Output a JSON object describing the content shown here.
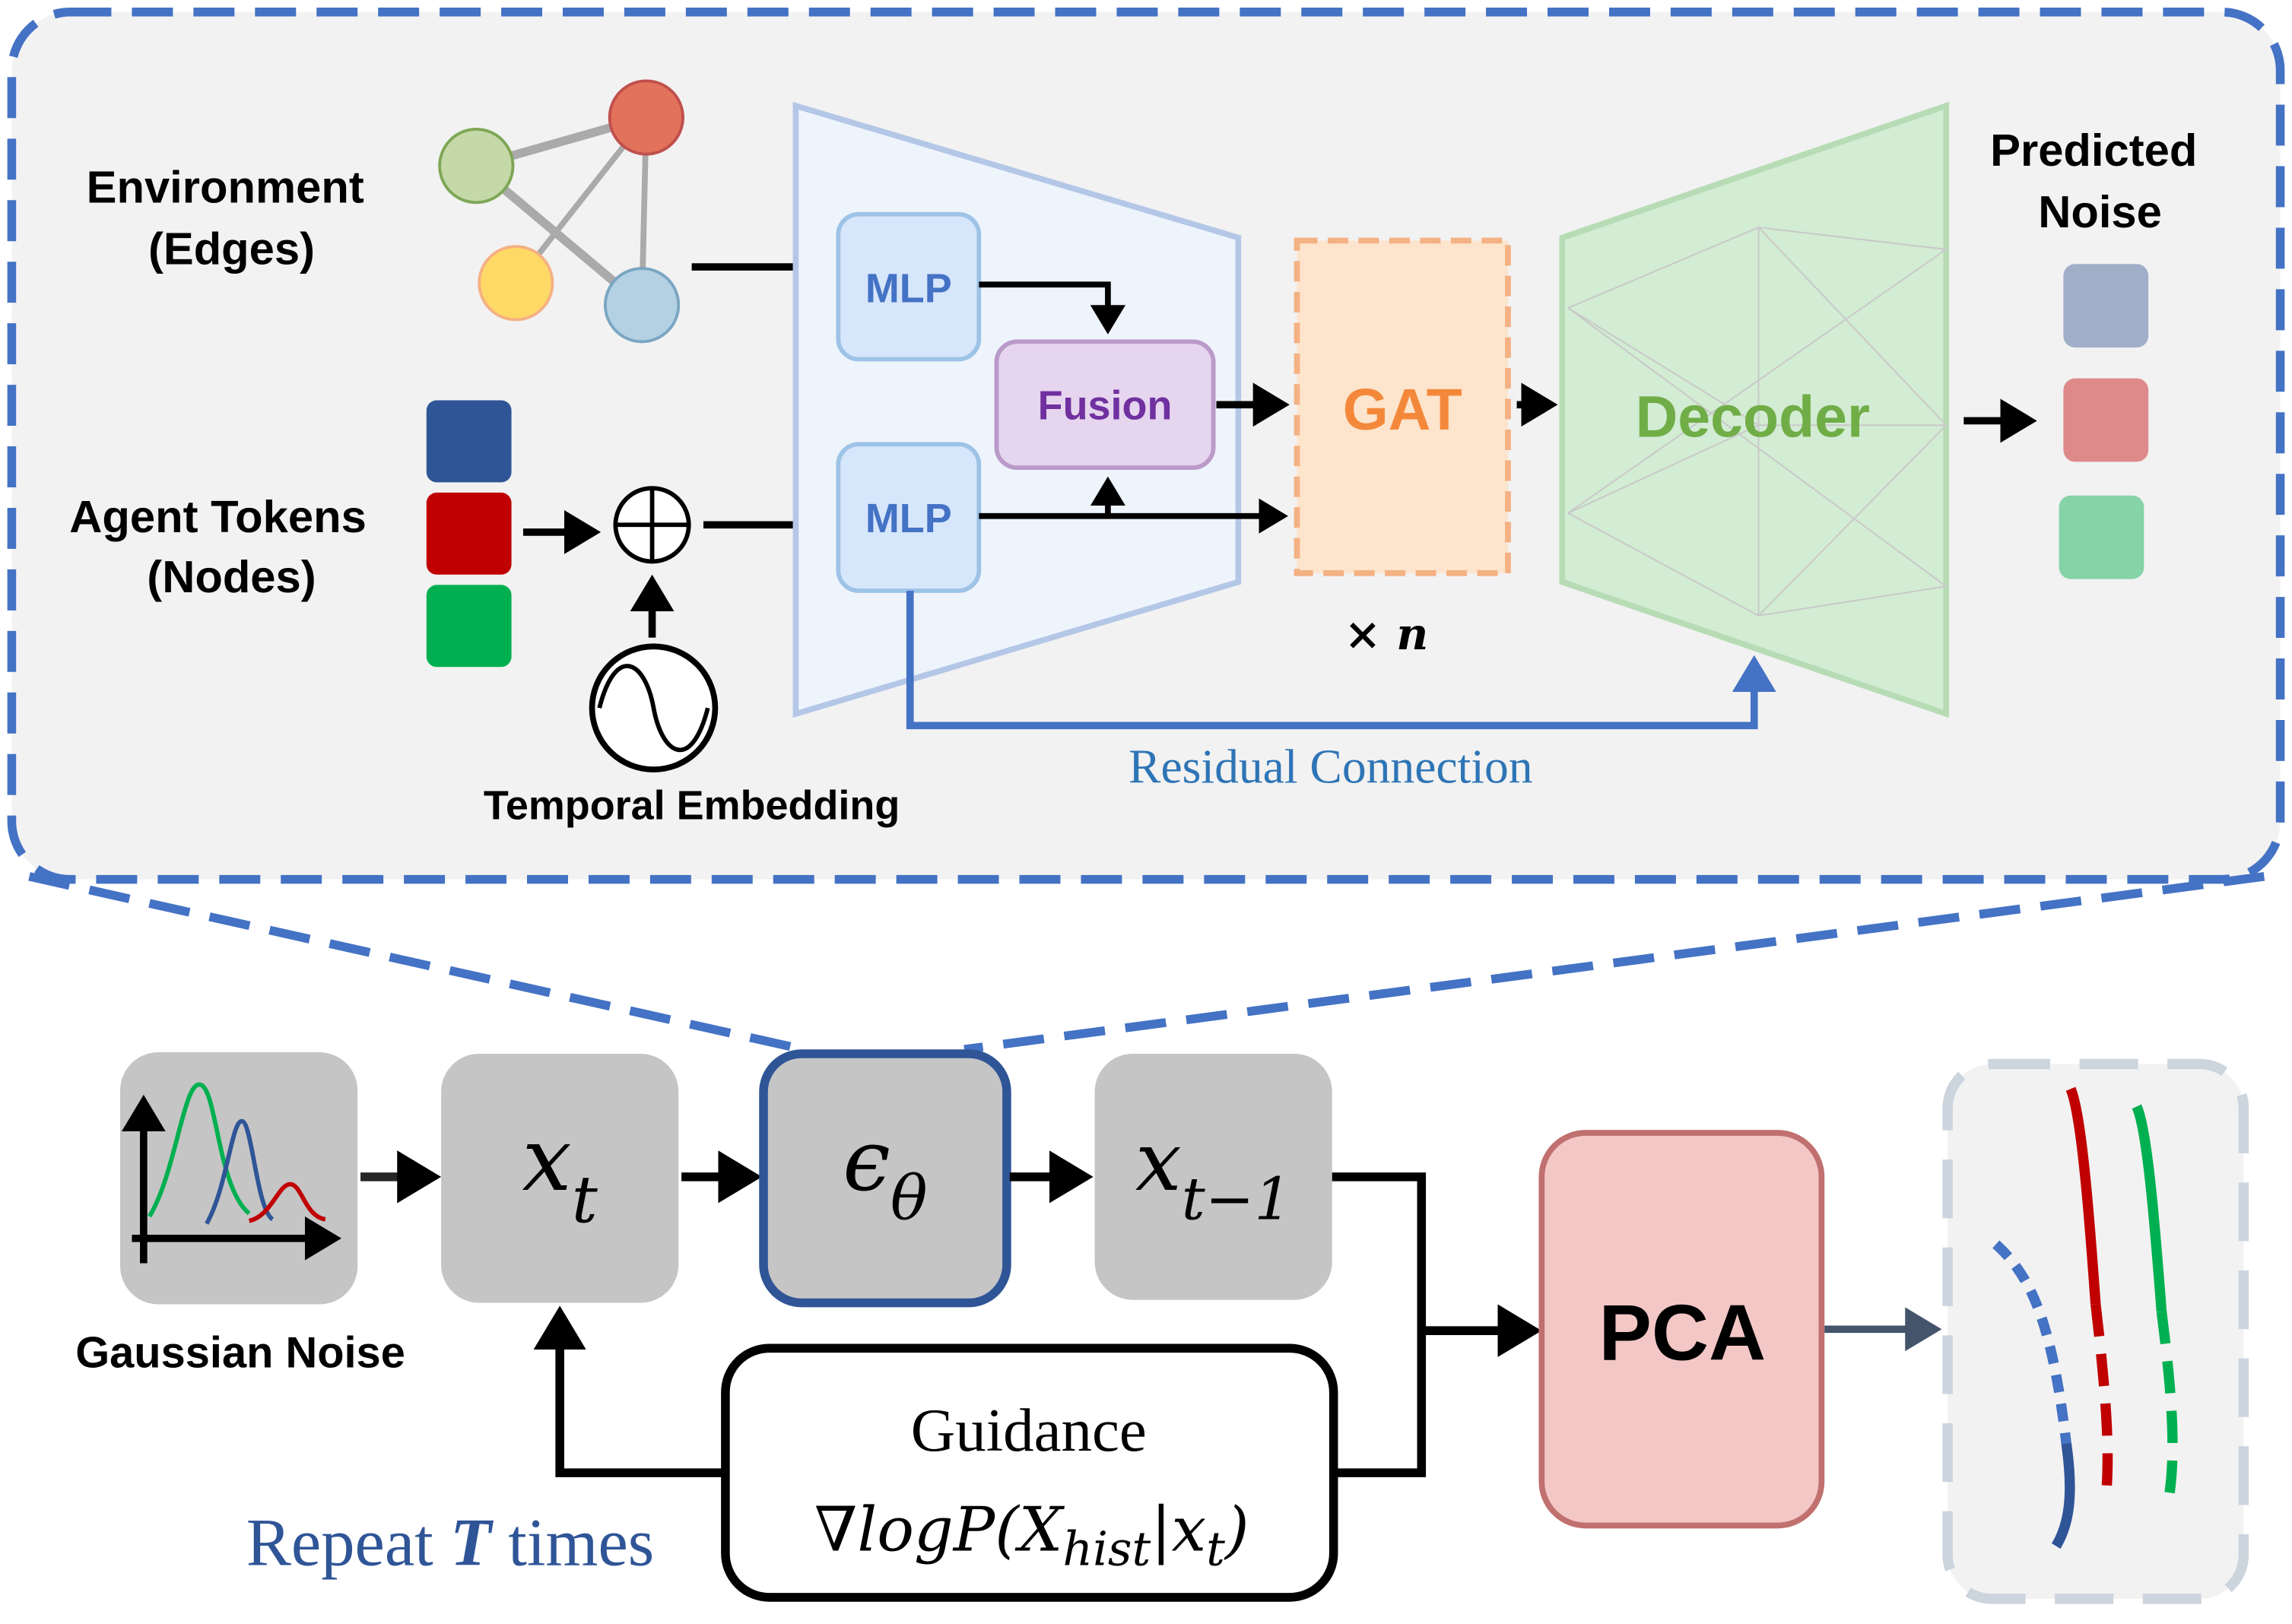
{
  "top_panel": {
    "environment_label": [
      "Environment",
      "(Edges)"
    ],
    "agent_label": [
      "Agent Tokens",
      "(Nodes)"
    ],
    "temporal_label": "Temporal Embedding",
    "mlp_top": "MLP",
    "mlp_bottom": "MLP",
    "fusion": "Fusion",
    "gat": "GAT",
    "repeat_n": "× n",
    "decoder": "Decoder",
    "residual": "Residual Connection",
    "predicted_label": [
      "Predicted",
      "Noise"
    ]
  },
  "pipeline": {
    "gaussian_label": "Gaussian Noise",
    "xt": {
      "base": "x",
      "sub": "t"
    },
    "eps": {
      "base": "ϵ",
      "sub": "θ"
    },
    "xt1": {
      "base": "x",
      "sub": "t−1"
    },
    "pca": "PCA",
    "guidance_title": "Guidance",
    "guidance_formula": {
      "pre": "∇logP(X",
      "sub1": "hist",
      "mid": "|x",
      "sub2": "t",
      "post": ")"
    },
    "repeat": {
      "pre": "Repeat ",
      "var": "T",
      "post": " times"
    }
  },
  "colors": {
    "accent_blue": "#4472c4",
    "dark_blue": "#2f5597",
    "red": "#c00000",
    "green": "#00b050",
    "gat_orange": "#f4883a",
    "decoder_green": "#70ad47",
    "fusion_purple": "#7030a0",
    "pca_fill": "#f4c7c7"
  }
}
